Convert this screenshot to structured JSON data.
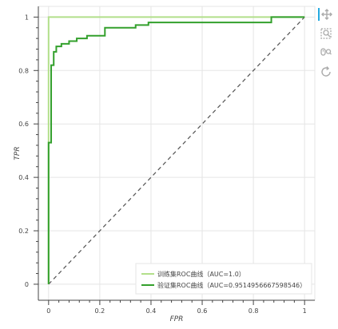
{
  "chart_data": {
    "type": "line",
    "xlabel": "FPR",
    "ylabel": "TPR",
    "xlim": [
      -0.04,
      1.04
    ],
    "ylim": [
      -0.06,
      1.04
    ],
    "x_ticks": [
      0,
      0.2,
      0.4,
      0.6,
      0.8,
      1
    ],
    "x_tick_labels": [
      "0",
      "0.2",
      "0.4",
      "0.6",
      "0.8",
      "1"
    ],
    "y_ticks": [
      0,
      0.2,
      0.4,
      0.6,
      0.8,
      1
    ],
    "y_tick_labels": [
      "0",
      "0.2",
      "0.4",
      "0.6",
      "0.8",
      "1"
    ],
    "grid": true,
    "legend_position": "bottom-right",
    "series": [
      {
        "name": "训练集ROC曲线（AUC=1.0）",
        "color": "#b2df8a",
        "x": [
          0,
          0,
          1
        ],
        "y": [
          0,
          1,
          1
        ]
      },
      {
        "name": "验证集ROC曲线（AUC=0.9514956667598546）",
        "color": "#33a02c",
        "x": [
          0,
          0,
          0.01,
          0.01,
          0.02,
          0.02,
          0.03,
          0.03,
          0.05,
          0.05,
          0.08,
          0.08,
          0.11,
          0.11,
          0.15,
          0.15,
          0.22,
          0.22,
          0.34,
          0.34,
          0.39,
          0.39,
          0.44,
          0.44,
          0.87,
          0.87,
          1
        ],
        "y": [
          0,
          0.53,
          0.53,
          0.82,
          0.82,
          0.87,
          0.87,
          0.89,
          0.89,
          0.9,
          0.9,
          0.91,
          0.91,
          0.92,
          0.92,
          0.93,
          0.93,
          0.96,
          0.96,
          0.97,
          0.97,
          0.98,
          0.98,
          0.98,
          0.98,
          1,
          1
        ]
      }
    ],
    "reference_line": {
      "x": [
        0,
        1
      ],
      "y": [
        0,
        1
      ],
      "style": "dashed",
      "color": "#555555"
    }
  },
  "toolbar": {
    "items": [
      {
        "name": "pan-tool",
        "icon": "move-icon"
      },
      {
        "name": "box-zoom-tool",
        "icon": "box-zoom-icon"
      },
      {
        "name": "wheel-zoom-tool",
        "icon": "wheel-zoom-icon"
      },
      {
        "name": "reset-tool",
        "icon": "reset-icon"
      }
    ],
    "active_color": "#26aae1",
    "icon_color": "#aaaaaa"
  }
}
